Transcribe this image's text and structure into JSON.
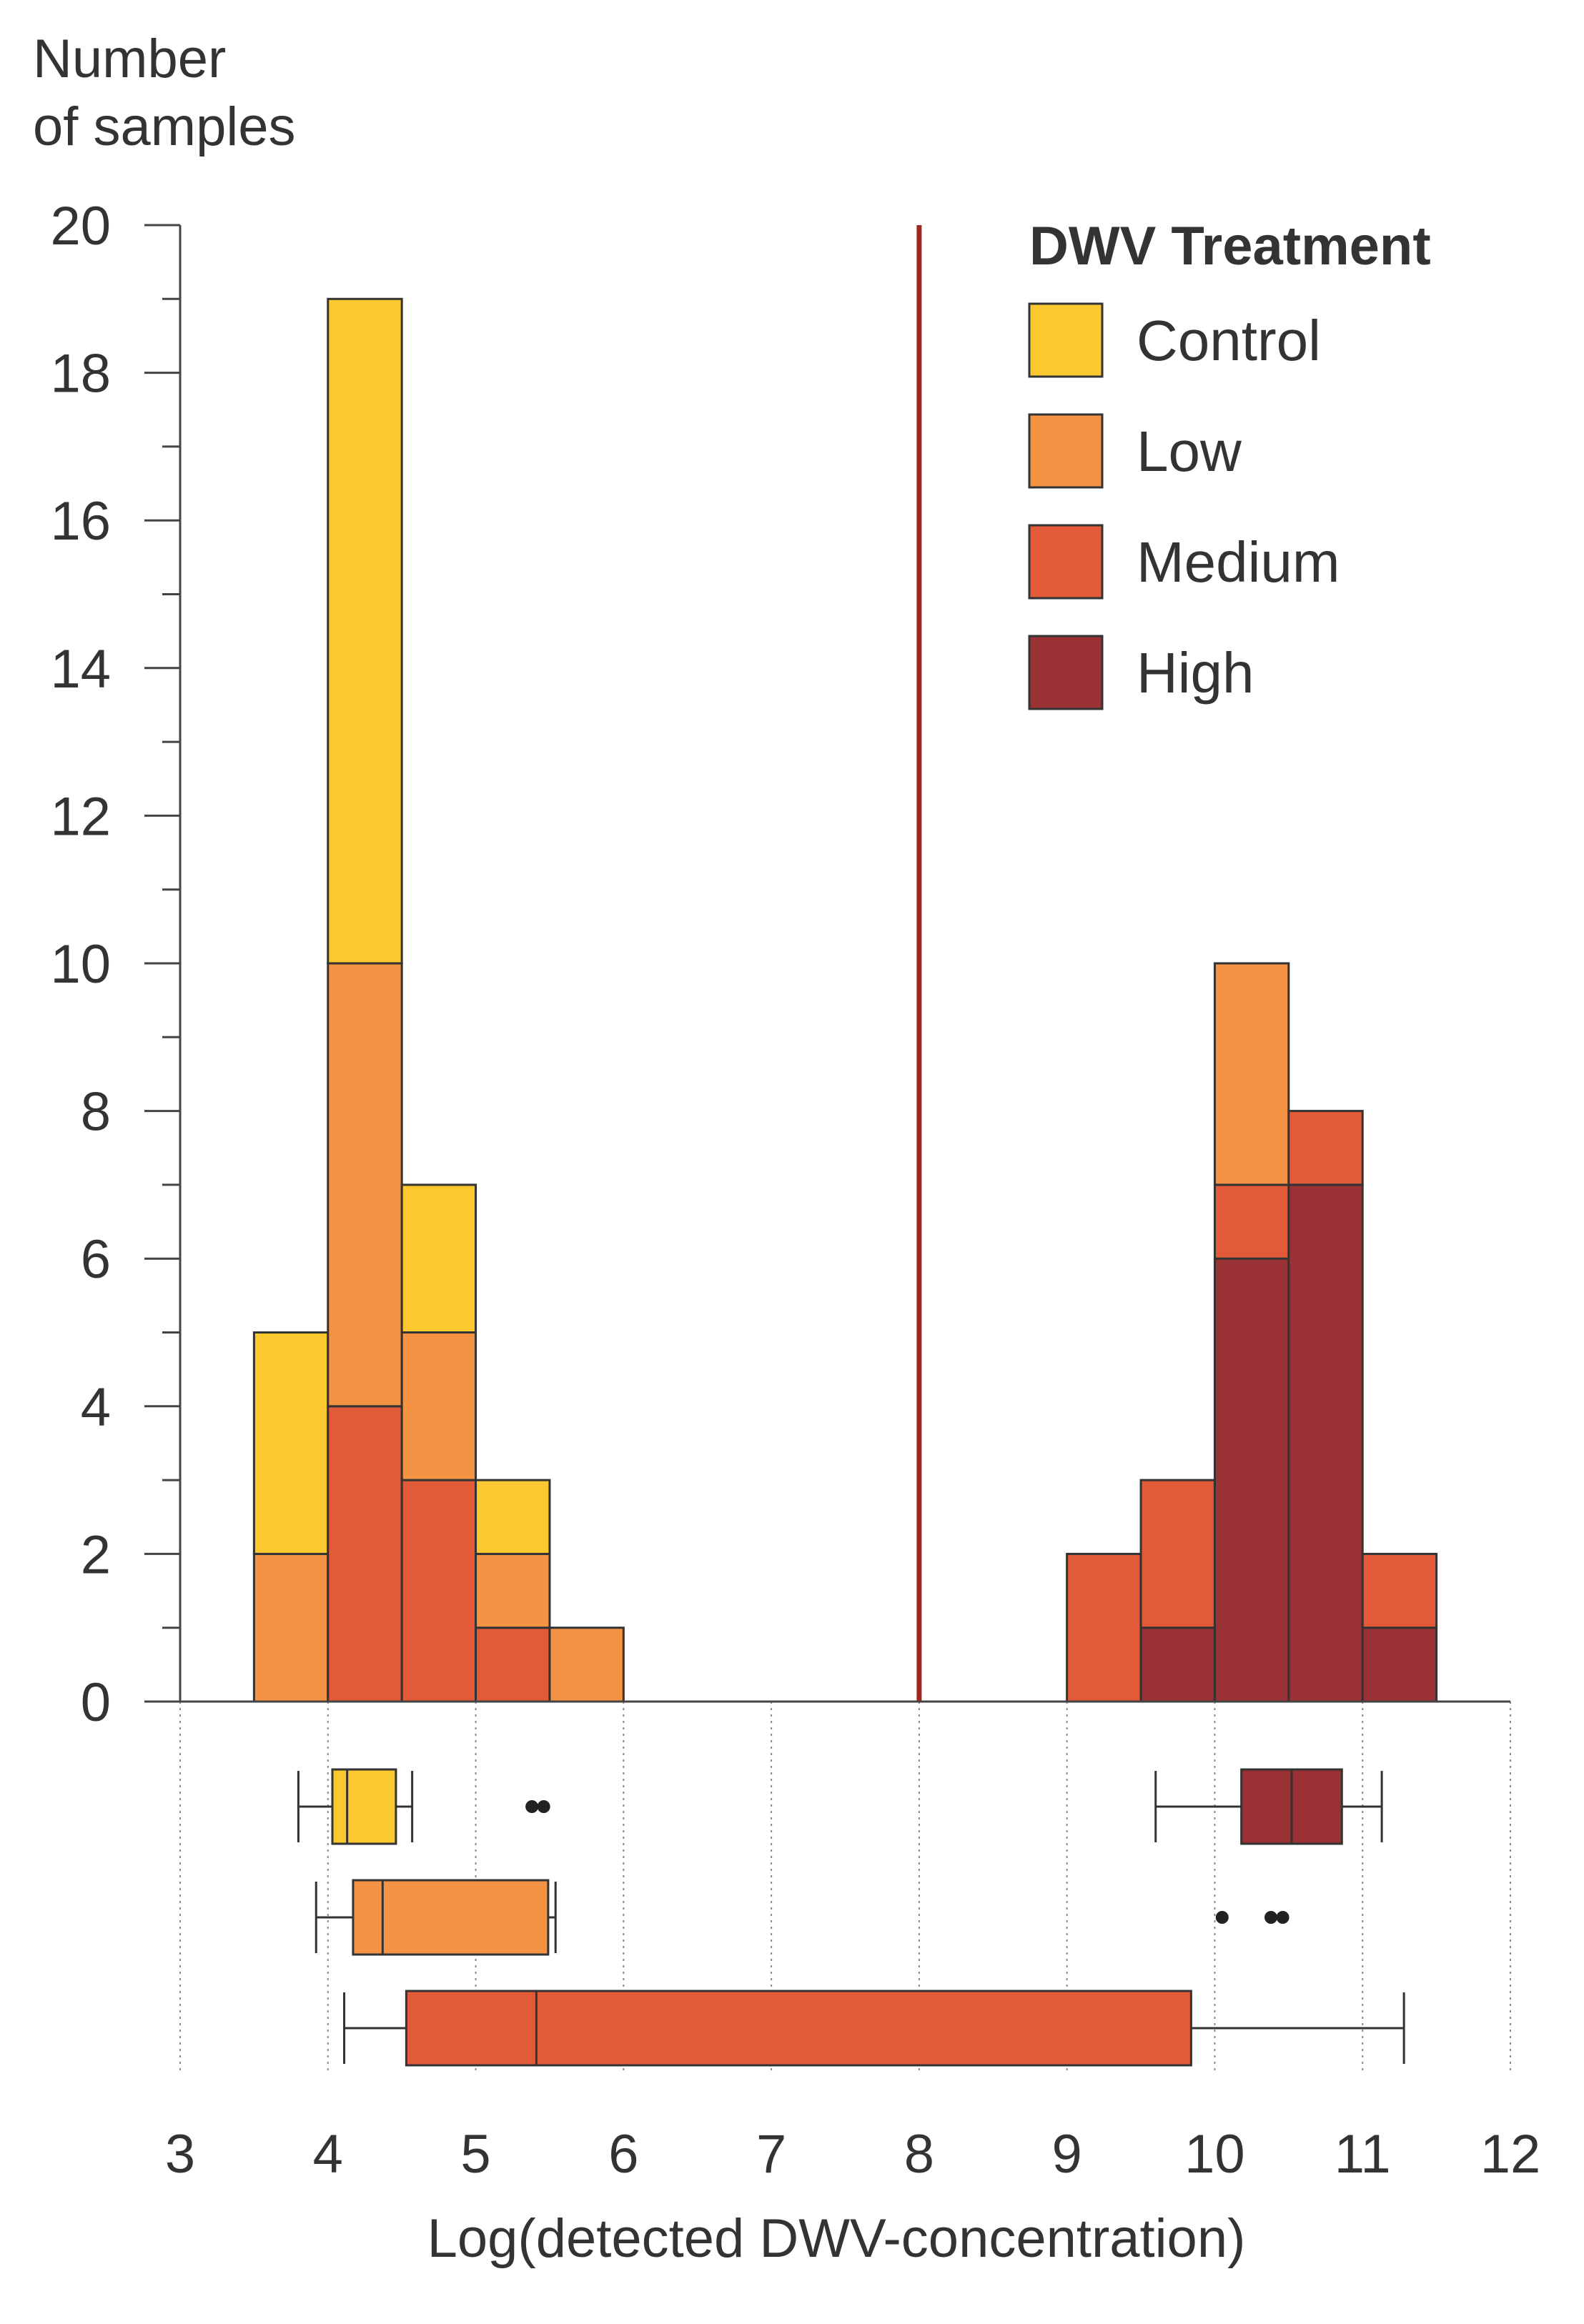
{
  "chart_data": {
    "type": "stacked-histogram-with-boxplots",
    "ylabel": [
      "Number",
      "of samples"
    ],
    "xlabel": "Log(detected DWV-concentration)",
    "xlim": [
      3,
      12
    ],
    "ylim": [
      0,
      20
    ],
    "x_ticks": [
      "3",
      "4",
      "5",
      "6",
      "7",
      "8",
      "9",
      "10",
      "11",
      "12"
    ],
    "y_ticks": [
      "0",
      "2",
      "4",
      "6",
      "8",
      "10",
      "12",
      "14",
      "16",
      "18",
      "20"
    ],
    "threshold_line": {
      "x": 8,
      "color": "#9b2a22"
    },
    "bin_width": 0.5,
    "legend": {
      "title": "DWV Treatment",
      "placement": "top-right",
      "items": [
        {
          "name": "Control",
          "color": "#fbc82f"
        },
        {
          "name": "Low",
          "color": "#f39343"
        },
        {
          "name": "Medium",
          "color": "#e35a38"
        },
        {
          "name": "High",
          "color": "#993135"
        }
      ]
    },
    "bins": [
      3.5,
      4.0,
      4.5,
      5.0,
      5.5,
      9.0,
      9.5,
      10.0,
      10.5,
      11.0
    ],
    "series": [
      {
        "name": "High",
        "values": [
          0,
          0,
          0,
          0,
          0,
          0,
          1,
          6,
          7,
          1
        ]
      },
      {
        "name": "Medium",
        "values": [
          0,
          4,
          3,
          1,
          0,
          2,
          2,
          1,
          1,
          1
        ]
      },
      {
        "name": "Low",
        "values": [
          2,
          6,
          2,
          1,
          1,
          0,
          0,
          3,
          0,
          0
        ]
      },
      {
        "name": "Control",
        "values": [
          3,
          9,
          2,
          1,
          0,
          0,
          0,
          0,
          0,
          0
        ]
      }
    ],
    "boxplots": [
      {
        "name": "Control",
        "row": 1,
        "whisker_low": 3.8,
        "q1": 4.03,
        "median": 4.13,
        "q3": 4.46,
        "whisker_high": 4.57,
        "outliers": [
          5.38,
          5.46
        ]
      },
      {
        "name": "Low",
        "row": 2,
        "whisker_low": 3.92,
        "q1": 4.17,
        "median": 4.37,
        "q3": 5.49,
        "whisker_high": 5.54,
        "outliers": []
      },
      {
        "name": "Medium",
        "row": 3,
        "whisker_low": 4.11,
        "q1": 4.53,
        "median": 5.41,
        "q3": 9.84,
        "whisker_high": 11.28,
        "outliers": []
      },
      {
        "name": "High",
        "row": 1,
        "whisker_low": 9.6,
        "q1": 10.18,
        "median": 10.52,
        "q3": 10.86,
        "whisker_high": 11.13,
        "outliers": []
      },
      {
        "name": "Low-extra-outliers",
        "row": 2,
        "outliers_only": true,
        "outliers": [
          10.05,
          10.38,
          10.46
        ]
      }
    ]
  }
}
